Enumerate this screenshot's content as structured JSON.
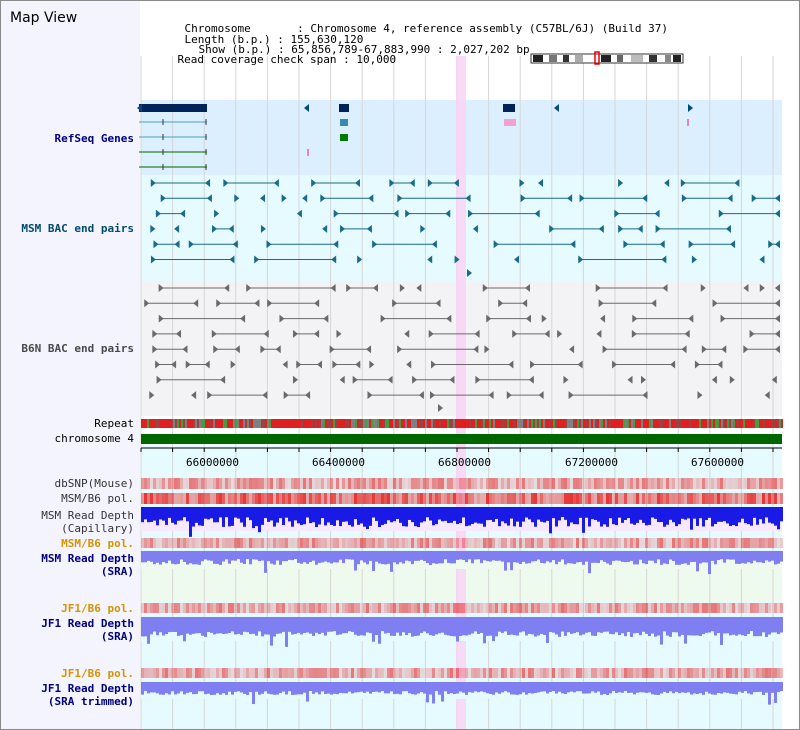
{
  "window": {
    "title": "Map View"
  },
  "header": {
    "rows": [
      {
        "key": "Chromosome",
        "value": "Chromosome 4, reference assembly (C57BL/6J) (Build 37)"
      },
      {
        "key": "Length (b.p.)",
        "value": "155,630,120"
      },
      {
        "key": "Show (b.p.)",
        "value": "65,856,789-67,883,990 : 2,027,202 bp"
      },
      {
        "key": "Read coverage check span",
        "value": "10,000"
      }
    ]
  },
  "tracks": {
    "refseq": "RefSeq Genes",
    "msm_bac": "MSM BAC end pairs",
    "b6n_bac": "B6N BAC end pairs",
    "repeat": "Repeat",
    "chromosome": "chromosome 4",
    "dbsnp": "dbSNP(Mouse)",
    "msm_b6_pol": "MSM/B6 pol.",
    "msm_rd_cap_1": "MSM Read Depth",
    "msm_rd_cap_2": "(Capillary)",
    "msm_b6_pol_2": "MSM/B6 pol.",
    "msm_rd_sra_1": "MSM Read Depth",
    "msm_rd_sra_2": "(SRA)",
    "jf1_b6_pol": "JF1/B6 pol.",
    "jf1_rd_sra_1": "JF1 Read Depth",
    "jf1_rd_sra_2": "(SRA)",
    "jf1_b6_pol_2": "JF1/B6 pol.",
    "jf1_rd_trim_1": "JF1 Read Depth",
    "jf1_rd_trim_2": "(SRA trimmed)"
  },
  "axis": {
    "ticks": [
      "66000000",
      "66400000",
      "66800000",
      "67200000",
      "67600000"
    ]
  },
  "colors": {
    "refseq_bg": "#dcefff",
    "msm_bg": "#e6fbff",
    "b6n_bg": "#f3f3f6",
    "chrom": "#006600",
    "highlight": "#f8d4f4",
    "depth_blue": "#1a1ae6",
    "depth_light": "#7f7ff2",
    "label_blue": "#00007f",
    "label_orange": "#d59500",
    "label_teal": "#004a6e",
    "label_grey": "#3a3a3a"
  }
}
